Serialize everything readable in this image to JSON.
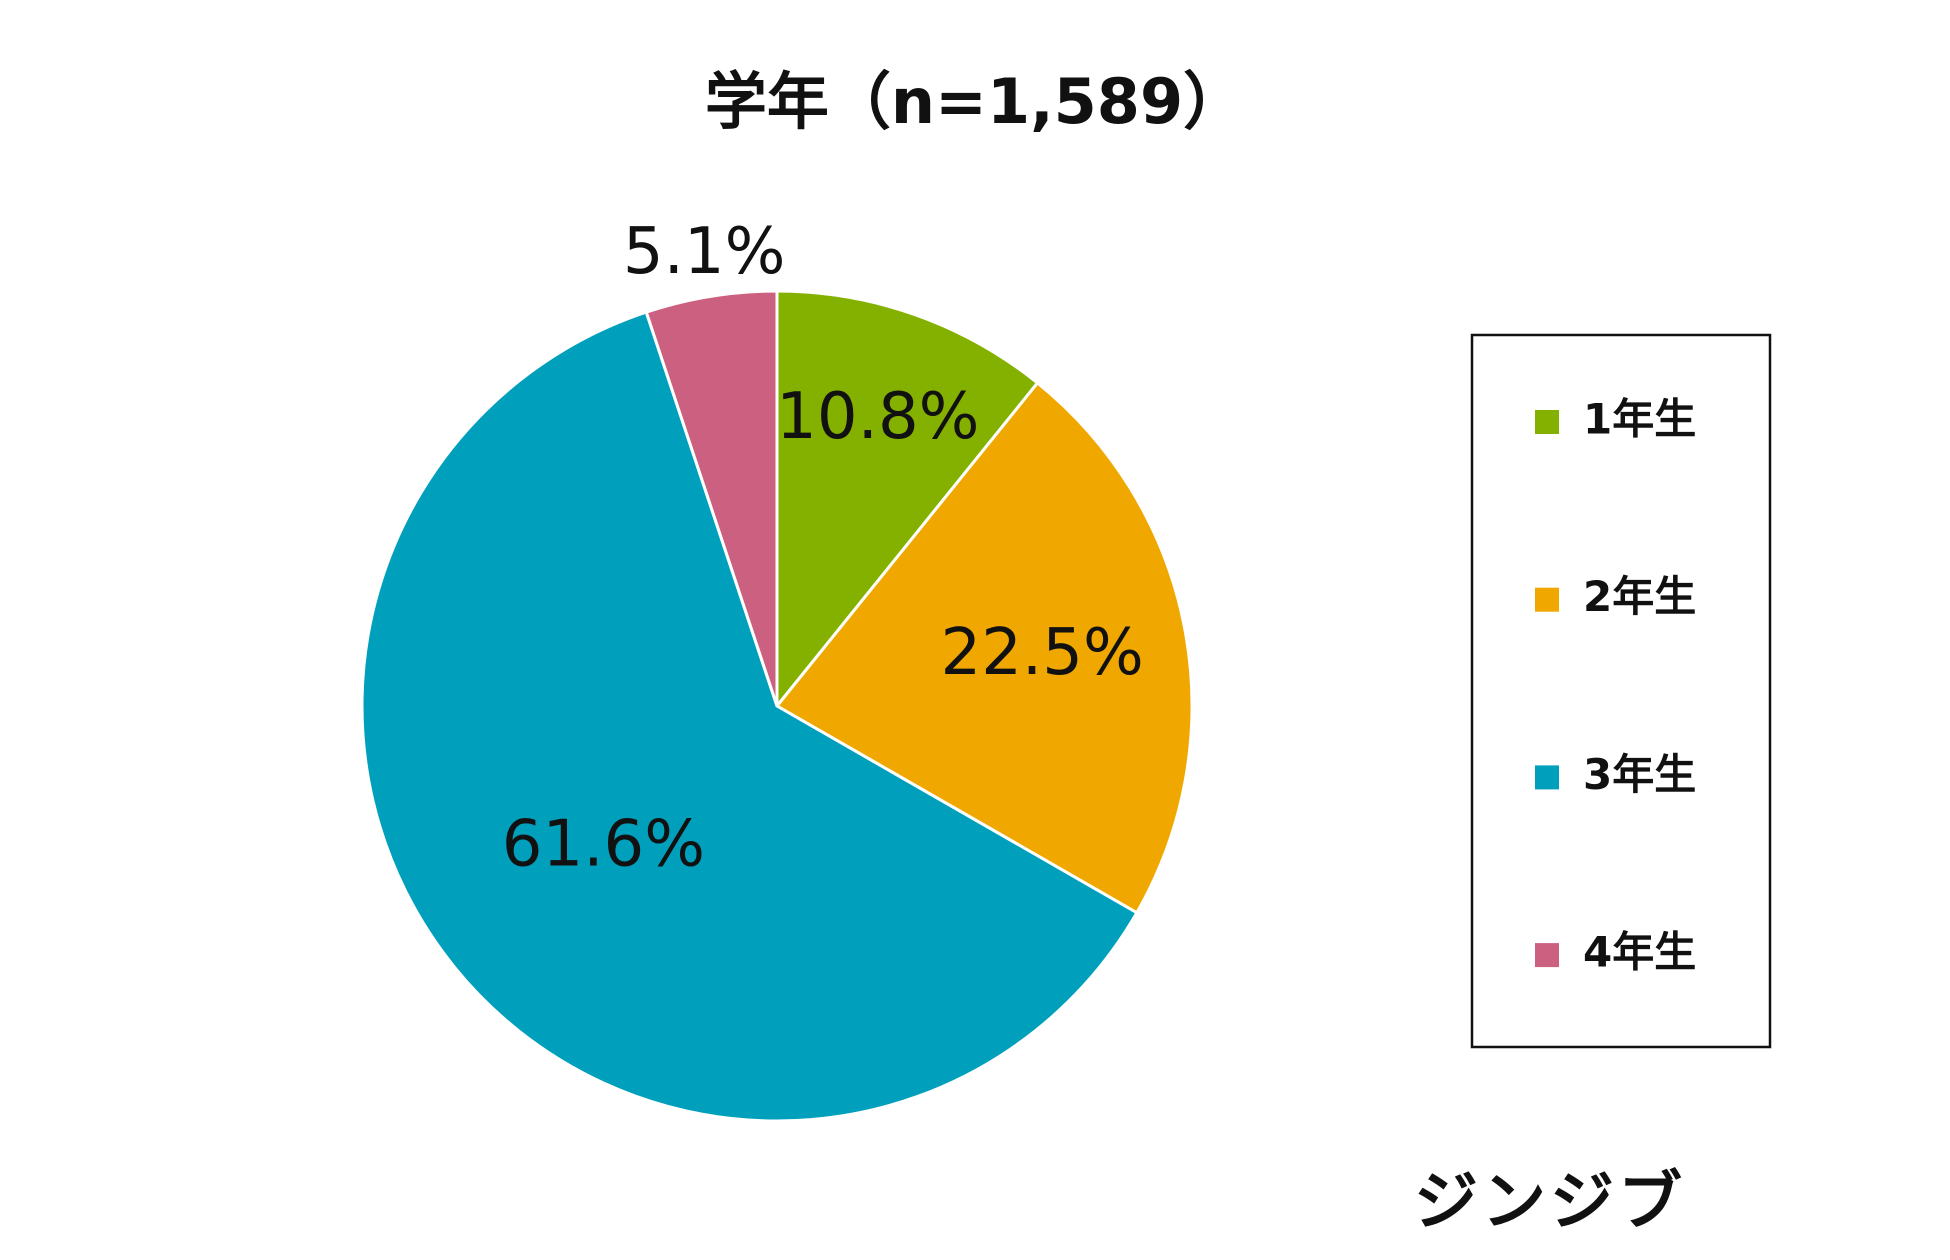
{
  "chart_data": {
    "type": "pie",
    "title": "学年（n=1,589）",
    "categories": [
      "1年生",
      "2年生",
      "3年生",
      "4年生"
    ],
    "values": [
      10.8,
      22.5,
      61.6,
      5.1
    ],
    "value_labels": [
      "10.8%",
      "22.5%",
      "61.6%",
      "5.1%"
    ],
    "colors": [
      "#84b100",
      "#f0a800",
      "#00a0bd",
      "#cc6080"
    ],
    "legend": "right",
    "watermark": "ジンジブ"
  }
}
